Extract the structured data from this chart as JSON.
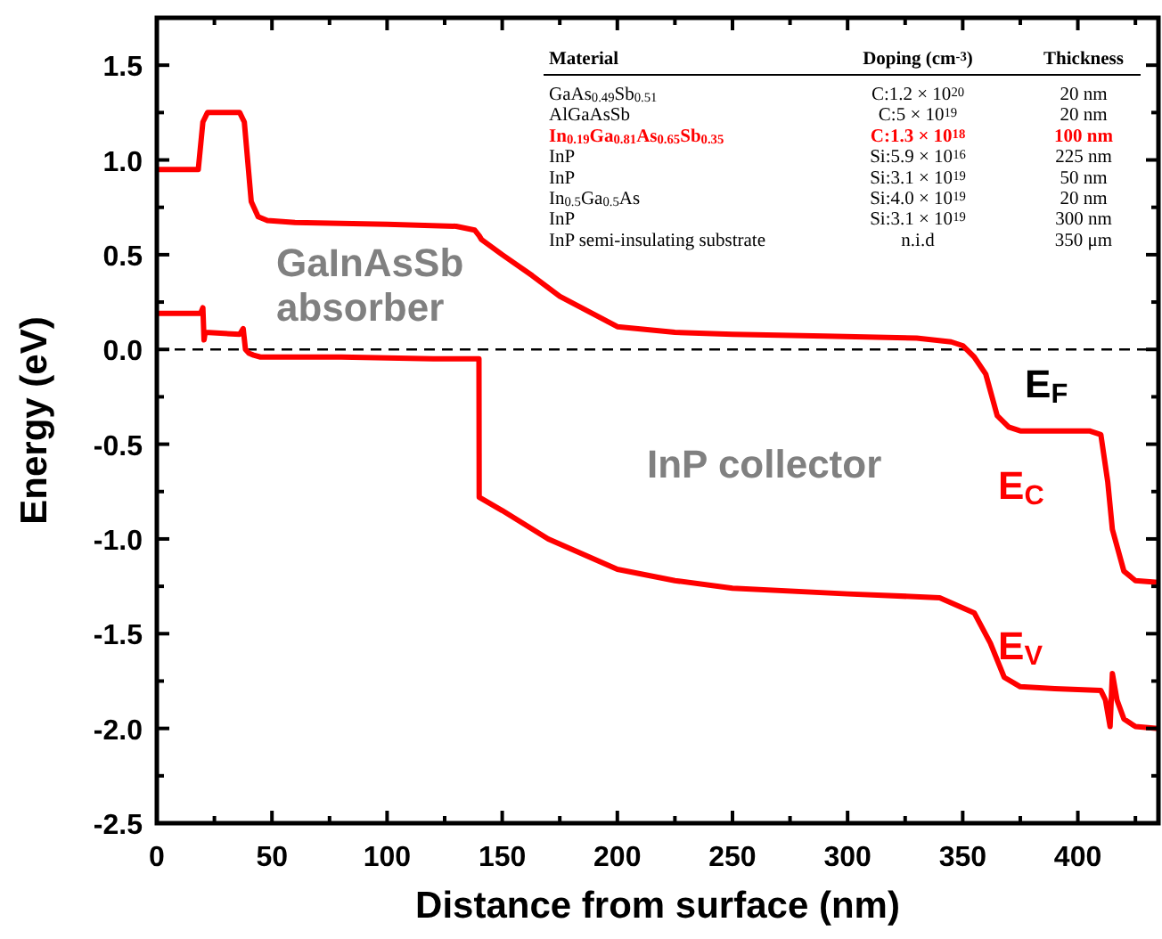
{
  "chart_data": {
    "type": "line",
    "xlabel": "Distance from surface (nm)",
    "ylabel": "Energy (eV)",
    "xlim": [
      0,
      435
    ],
    "ylim": [
      -2.5,
      1.75
    ],
    "xticks": [
      0,
      {
        "value": 25,
        "label": null
      },
      50,
      {
        "value": 75,
        "label": null
      },
      100,
      {
        "value": 125,
        "label": null
      },
      150,
      {
        "value": 175,
        "label": null
      },
      200,
      {
        "value": 225,
        "label": null
      },
      250,
      {
        "value": 275,
        "label": null
      },
      300,
      {
        "value": 325,
        "label": null
      },
      350,
      {
        "value": 375,
        "label": null
      },
      400,
      {
        "value": 425,
        "label": null
      }
    ],
    "yticks": [
      {
        "value": -2.5,
        "label": "-2.5"
      },
      {
        "value": -2.25,
        "label": null
      },
      {
        "value": -2,
        "label": "-2.0"
      },
      {
        "value": -1.75,
        "label": null
      },
      {
        "value": -1.5,
        "label": "-1.5"
      },
      {
        "value": -1.25,
        "label": null
      },
      {
        "value": -1,
        "label": "-1.0"
      },
      {
        "value": -0.75,
        "label": null
      },
      {
        "value": -0.5,
        "label": "-0.5"
      },
      {
        "value": -0.25,
        "label": null
      },
      {
        "value": 0,
        "label": "0.0"
      },
      {
        "value": 0.25,
        "label": null
      },
      {
        "value": 0.5,
        "label": "0.5"
      },
      {
        "value": 0.75,
        "label": null
      },
      {
        "value": 1,
        "label": "1.0"
      },
      {
        "value": 1.25,
        "label": null
      },
      {
        "value": 1.5,
        "label": "1.5"
      }
    ],
    "grid": false,
    "legend": "right",
    "marker": "none",
    "line_style": "solid",
    "series": [
      {
        "name": "E$_{C}$",
        "color": "#ff0000",
        "x": [
          0,
          18,
          20,
          22,
          36,
          38,
          41,
          44,
          48,
          60,
          100,
          130,
          138,
          140,
          141,
          150,
          163,
          175,
          200,
          225,
          250,
          290,
          330,
          345,
          350,
          355,
          360,
          365,
          370,
          375,
          390,
          405,
          410,
          413,
          415,
          420,
          425,
          435
        ],
        "values": [
          0.95,
          0.95,
          1.2,
          1.25,
          1.25,
          1.2,
          0.78,
          0.7,
          0.68,
          0.67,
          0.66,
          0.65,
          0.63,
          0.6,
          0.58,
          0.5,
          0.39,
          0.28,
          0.12,
          0.09,
          0.08,
          0.07,
          0.06,
          0.04,
          0.02,
          -0.04,
          -0.13,
          -0.35,
          -0.41,
          -0.43,
          -0.43,
          -0.43,
          -0.45,
          -0.7,
          -0.95,
          -1.17,
          -1.22,
          -1.23
        ]
      },
      {
        "name": "E$_{V}$",
        "color": "#ff0000",
        "x": [
          0,
          19,
          20,
          20.5,
          21,
          36,
          37.5,
          38.5,
          40,
          42,
          45,
          80,
          120,
          138,
          139.9,
          140,
          150,
          170,
          200,
          225,
          250,
          300,
          340,
          355,
          362,
          368,
          375,
          390,
          410,
          412,
          414,
          415,
          417,
          420,
          425,
          435
        ],
        "values": [
          0.19,
          0.19,
          0.22,
          0.05,
          0.09,
          0.08,
          0.11,
          0.0,
          -0.02,
          -0.03,
          -0.04,
          -0.04,
          -0.05,
          -0.05,
          -0.05,
          -0.78,
          -0.85,
          -1.0,
          -1.16,
          -1.22,
          -1.26,
          -1.29,
          -1.31,
          -1.39,
          -1.55,
          -1.73,
          -1.78,
          -1.79,
          -1.8,
          -1.85,
          -1.99,
          -1.71,
          -1.85,
          -1.95,
          -1.99,
          -2.0
        ]
      }
    ],
    "ref_lines": [
      {
        "axis": "y",
        "value": 0,
        "label": "E$_{F}$",
        "color": "#000000",
        "line_style": "dashed"
      }
    ],
    "annotations": [
      "Material",
      "Doping (cm$^{-3}$)",
      "Thickness",
      "GaAs$_{0.49}$Sb$_{0.51}$",
      "C:1.2 × 10$^{20}$",
      "20 nm",
      "AlGaAsSb",
      "C:5 × 10$^{19}$",
      "20 nm",
      "In$_{0.19}$Ga$_{0.81}$As$_{0.65}$Sb$_{0.35}$",
      "C:1.3 × 10$^{18}$",
      "100 nm",
      "InP",
      "Si:5.9 × 10$^{16}$",
      "225 nm",
      "InP",
      "Si:3.1 × 10$^{19}$",
      "50 nm",
      "In$_{0.5}$Ga$_{0.5}$As",
      "Si:4.0 × 10$^{19}$",
      "20 nm",
      "InP",
      "Si:3.1 × 10$^{19}$",
      "300 nm",
      "InP semi-insulating substrate",
      "n.i.d",
      "350 μm",
      "GaInAsSb",
      "absorber",
      "InP collector"
    ]
  }
}
